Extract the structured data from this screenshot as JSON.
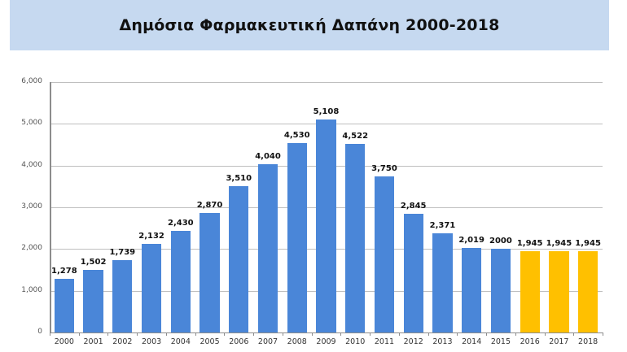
{
  "header": {
    "title": "Δημόσια Φαρμακευτική Δαπάνη 2000-2018"
  },
  "colors": {
    "banner": "#c6d9f0",
    "actual": "#4a86d8",
    "forecast": "#ffc000",
    "grid": "#bfbfbf"
  },
  "chart_data": {
    "type": "bar",
    "title": "Δημόσια Φαρμακευτική Δαπάνη 2000-2018",
    "xlabel": "",
    "ylabel": "",
    "ylim": [
      0,
      6000
    ],
    "yticks": [
      "0",
      "1,000",
      "2,000",
      "3,000",
      "4,000",
      "5,000",
      "6,000"
    ],
    "grid": true,
    "legend": null,
    "categories": [
      "2000",
      "2001",
      "2002",
      "2003",
      "2004",
      "2005",
      "2006",
      "2007",
      "2008",
      "2009",
      "2010",
      "2011",
      "2012",
      "2013",
      "2014",
      "2015",
      "2016",
      "2017",
      "2018"
    ],
    "values": [
      1278,
      1502,
      1739,
      2132,
      2430,
      2870,
      3510,
      4040,
      4530,
      5108,
      4522,
      3750,
      2845,
      2371,
      2019,
      2000,
      1945,
      1945,
      1945
    ],
    "labels": [
      "1,278",
      "1,502",
      "1,739",
      "2,132",
      "2,430",
      "2,870",
      "3,510",
      "4,040",
      "4,530",
      "5,108",
      "4,522",
      "3,750",
      "2,845",
      "2,371",
      "2,019",
      "2000",
      "1,945",
      "1,945",
      "1,945"
    ],
    "bar_colors": [
      "#4a86d8",
      "#4a86d8",
      "#4a86d8",
      "#4a86d8",
      "#4a86d8",
      "#4a86d8",
      "#4a86d8",
      "#4a86d8",
      "#4a86d8",
      "#4a86d8",
      "#4a86d8",
      "#4a86d8",
      "#4a86d8",
      "#4a86d8",
      "#4a86d8",
      "#4a86d8",
      "#ffc000",
      "#ffc000",
      "#ffc000"
    ]
  }
}
